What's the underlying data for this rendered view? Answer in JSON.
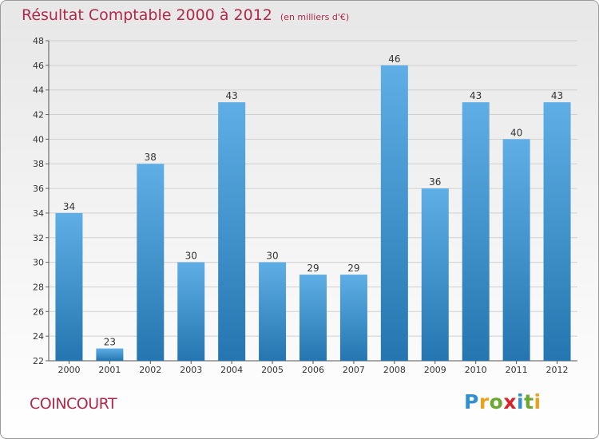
{
  "title": "Résultat Comptable 2000 à 2012",
  "subtitle": "(en milliers d'€)",
  "commune": "COINCOURT",
  "logo": {
    "letters": [
      {
        "char": "P",
        "color": "#2f8fcf"
      },
      {
        "char": "r",
        "color": "#e8a21c"
      },
      {
        "char": "o",
        "color": "#6aa832"
      },
      {
        "char": "x",
        "color": "#d8232a"
      },
      {
        "char": "i",
        "color": "#2f8fcf"
      },
      {
        "char": "t",
        "color": "#6aa832"
      },
      {
        "char": "i",
        "color": "#e8a21c"
      }
    ]
  },
  "colors": {
    "bar_light": "#5faee6",
    "bar_dark": "#2576b0",
    "title": "#b0294a"
  },
  "chart_data": {
    "type": "bar",
    "title": "Résultat Comptable 2000 à 2012",
    "xlabel": "",
    "ylabel": "",
    "categories": [
      "2000",
      "2001",
      "2002",
      "2003",
      "2004",
      "2005",
      "2006",
      "2007",
      "2008",
      "2009",
      "2010",
      "2011",
      "2012"
    ],
    "values": [
      34,
      23,
      38,
      30,
      43,
      30,
      29,
      29,
      46,
      36,
      43,
      40,
      43
    ],
    "ylim": [
      22,
      48
    ],
    "yticks": [
      22,
      24,
      26,
      28,
      30,
      32,
      34,
      36,
      38,
      40,
      42,
      44,
      46,
      48
    ],
    "grid": true
  }
}
